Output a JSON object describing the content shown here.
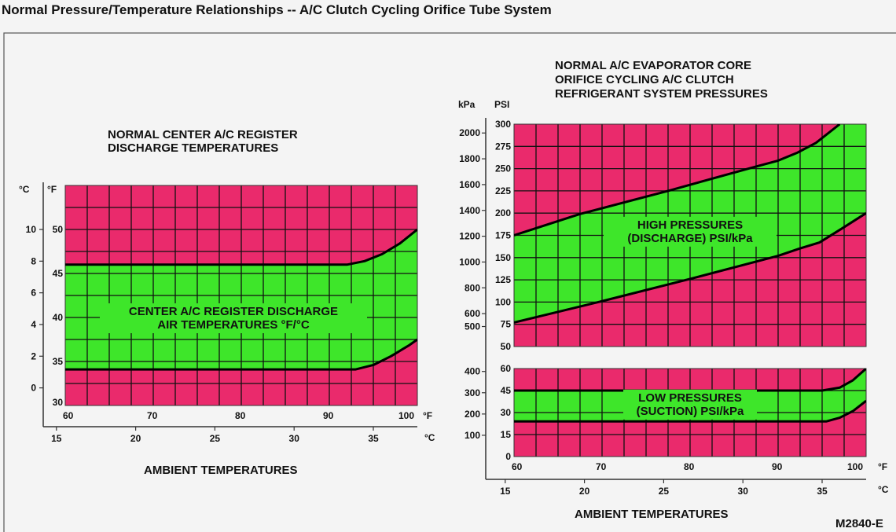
{
  "page_title": "Normal Pressure/Temperature Relationships -- A/C Clutch Cycling Orifice Tube System",
  "figure_id": "M2840-E",
  "colors": {
    "pink": "#ea2a6c",
    "green": "#3ee62a",
    "panel": "#f4f4f4"
  },
  "chart_data": [
    {
      "type": "area",
      "title": [
        "NORMAL CENTER A/C REGISTER",
        "DISCHARGE TEMPERATURES"
      ],
      "band_label": [
        "CENTER A/C REGISTER DISCHARGE",
        "AIR TEMPERATURES °F/°C"
      ],
      "xlabel": "AMBIENT TEMPERATURES",
      "x_unit_primary": "°F",
      "x_unit_secondary": "°C",
      "y_unit_primary": "°F",
      "y_unit_secondary": "°C",
      "xlim": [
        60,
        100
      ],
      "ylim": [
        30,
        55
      ],
      "x_ticks": [
        "60",
        "70",
        "80",
        "90",
        "100"
      ],
      "x_ticks_c": [
        "15",
        "20",
        "25",
        "30",
        "35"
      ],
      "y_ticks": [
        "30",
        "35",
        "40",
        "45",
        "50"
      ],
      "y_ticks_c": [
        "0",
        "2",
        "4",
        "6",
        "8",
        "10"
      ],
      "grid": true,
      "series": [
        {
          "name": "upper",
          "points": [
            [
              60,
              46
            ],
            [
              92,
              46
            ],
            [
              94,
              46.4
            ],
            [
              96,
              47.2
            ],
            [
              98,
              48.4
            ],
            [
              100,
              50
            ]
          ]
        },
        {
          "name": "lower",
          "points": [
            [
              60,
              34.1
            ],
            [
              93,
              34.1
            ],
            [
              95,
              34.6
            ],
            [
              97,
              35.6
            ],
            [
              99,
              36.8
            ],
            [
              100,
              37.5
            ]
          ]
        }
      ]
    },
    {
      "type": "area",
      "title": [
        "NORMAL A/C EVAPORATOR CORE",
        "ORIFICE CYCLING A/C CLUTCH",
        "REFRIGERANT SYSTEM PRESSURES"
      ],
      "band_label": [
        "HIGH PRESSURES",
        "(DISCHARGE) PSI/kPa"
      ],
      "y_unit_primary": "PSI",
      "y_unit_secondary": "kPa",
      "xlim": [
        60,
        100
      ],
      "ylim": [
        50,
        300
      ],
      "y_ticks": [
        "50",
        "75",
        "100",
        "125",
        "150",
        "175",
        "200",
        "225",
        "250",
        "275",
        "300"
      ],
      "y_ticks_kpa": [
        "500",
        "600",
        "800",
        "1000",
        "1200",
        "1400",
        "1600",
        "1800",
        "2000"
      ],
      "grid": true,
      "series": [
        {
          "name": "upper",
          "points": [
            [
              60,
              175
            ],
            [
              67.5,
              199
            ],
            [
              77.5,
              225
            ],
            [
              87,
              251
            ],
            [
              90,
              259
            ],
            [
              92.2,
              268
            ],
            [
              94.3,
              279
            ],
            [
              97,
              300
            ]
          ]
        },
        {
          "name": "lower",
          "points": [
            [
              60,
              77
            ],
            [
              70,
              101
            ],
            [
              80,
              126
            ],
            [
              90,
              152
            ],
            [
              92.4,
              160
            ],
            [
              94.7,
              167
            ],
            [
              97.3,
              183
            ],
            [
              100,
              200
            ]
          ]
        }
      ]
    },
    {
      "type": "area",
      "band_label": [
        "LOW PRESSURES",
        "(SUCTION) PSI/kPa"
      ],
      "xlabel": "AMBIENT TEMPERATURES",
      "x_unit_primary": "°F",
      "x_unit_secondary": "°C",
      "xlim": [
        60,
        100
      ],
      "ylim": [
        0,
        60
      ],
      "x_ticks": [
        "60",
        "70",
        "80",
        "90",
        "100"
      ],
      "x_ticks_c": [
        "15",
        "20",
        "25",
        "30",
        "35"
      ],
      "y_ticks": [
        "0",
        "15",
        "30",
        "45",
        "60"
      ],
      "y_ticks_kpa": [
        "100",
        "200",
        "300",
        "400"
      ],
      "grid": true,
      "series": [
        {
          "name": "upper",
          "points": [
            [
              60,
              45
            ],
            [
              95,
              45
            ],
            [
              97,
              47
            ],
            [
              98.5,
              52
            ],
            [
              100,
              60
            ]
          ]
        },
        {
          "name": "lower",
          "points": [
            [
              60,
              24
            ],
            [
              95.5,
              24
            ],
            [
              97,
              26.5
            ],
            [
              98.5,
              31
            ],
            [
              100,
              38
            ]
          ]
        }
      ]
    }
  ]
}
